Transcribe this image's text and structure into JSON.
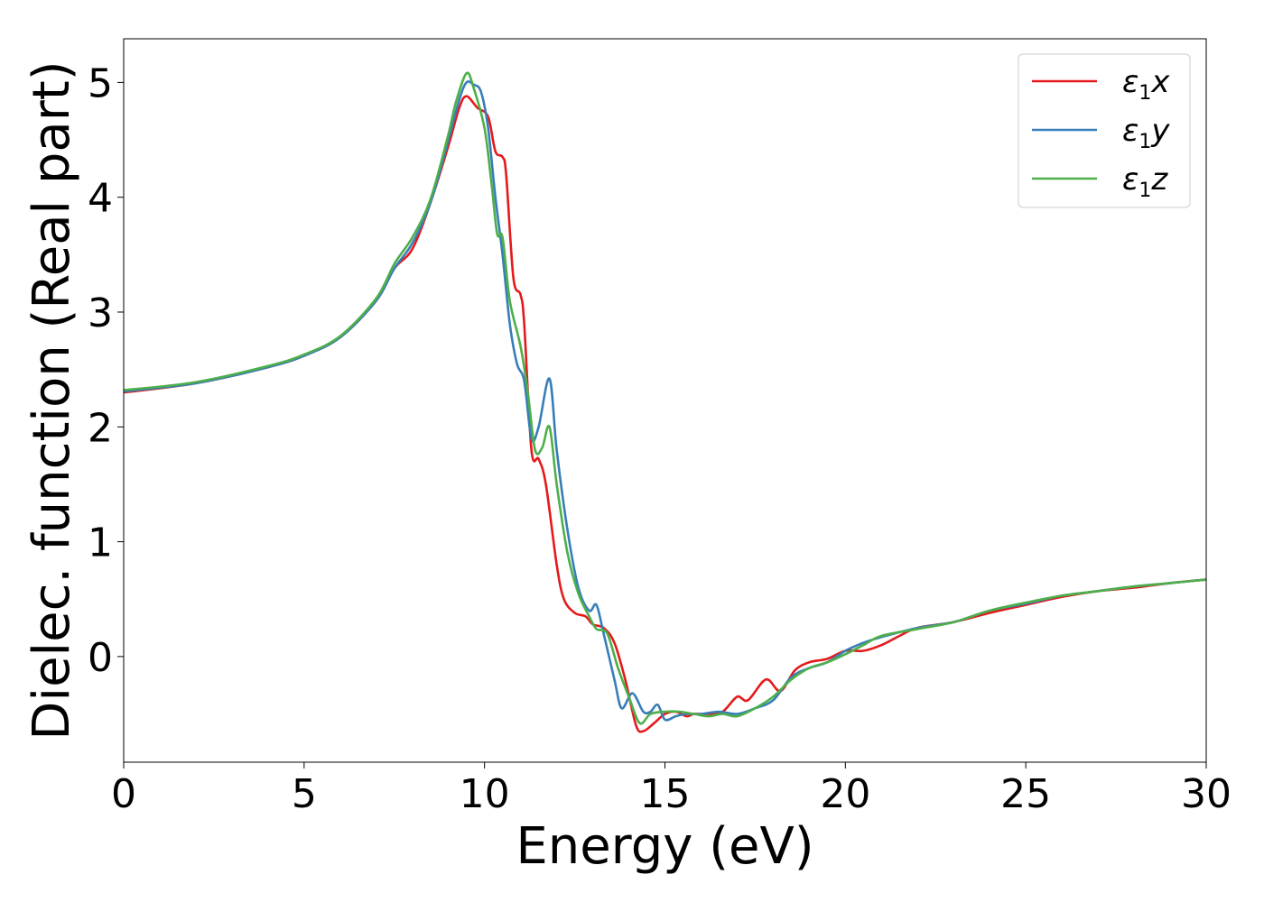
{
  "chart_data": {
    "type": "line",
    "title": "",
    "xlabel": "Energy (eV)",
    "ylabel": "Dielec. function (Real part)",
    "xlim": [
      0,
      30
    ],
    "ylim": [
      -0.92,
      5.38
    ],
    "xticks": [
      0,
      5,
      10,
      15,
      20,
      25,
      30
    ],
    "yticks": [
      0,
      1,
      2,
      3,
      4,
      5
    ],
    "grid": false,
    "legend_position": "top-right",
    "series": [
      {
        "name": "ε₁x",
        "label_base": "ε",
        "label_sub": "1",
        "label_var": "x",
        "color": "#e41a1c",
        "x": [
          0,
          2,
          4,
          5,
          6,
          7,
          7.5,
          8,
          8.5,
          9,
          9.3,
          9.5,
          9.8,
          10.1,
          10.3,
          10.5,
          10.6,
          10.8,
          11,
          11.1,
          11.3,
          11.5,
          11.7,
          12,
          12.2,
          12.5,
          12.8,
          13,
          13.3,
          13.6,
          13.9,
          14.2,
          14.4,
          14.7,
          15,
          15.3,
          15.6,
          15.8,
          16.2,
          16.6,
          17,
          17.3,
          17.8,
          18.2,
          18.6,
          19,
          19.5,
          20,
          20.5,
          21,
          21.5,
          22,
          23,
          24,
          25,
          26,
          27,
          28,
          29,
          30
        ],
        "y": [
          2.3,
          2.38,
          2.52,
          2.62,
          2.78,
          3.1,
          3.38,
          3.55,
          3.95,
          4.45,
          4.78,
          4.88,
          4.78,
          4.7,
          4.4,
          4.35,
          4.2,
          3.3,
          3.15,
          2.9,
          1.8,
          1.72,
          1.5,
          0.8,
          0.5,
          0.38,
          0.35,
          0.28,
          0.25,
          0.12,
          -0.2,
          -0.6,
          -0.65,
          -0.58,
          -0.5,
          -0.48,
          -0.52,
          -0.5,
          -0.5,
          -0.48,
          -0.35,
          -0.38,
          -0.2,
          -0.3,
          -0.12,
          -0.05,
          -0.02,
          0.05,
          0.05,
          0.1,
          0.18,
          0.25,
          0.3,
          0.38,
          0.45,
          0.52,
          0.57,
          0.6,
          0.64,
          0.67
        ]
      },
      {
        "name": "ε₁y",
        "label_base": "ε",
        "label_sub": "1",
        "label_var": "y",
        "color": "#377eb8",
        "x": [
          0,
          2,
          4,
          5,
          6,
          7,
          7.5,
          8,
          8.5,
          9,
          9.3,
          9.5,
          9.7,
          9.9,
          10.1,
          10.3,
          10.5,
          10.7,
          10.9,
          11.1,
          11.3,
          11.5,
          11.8,
          12,
          12.3,
          12.6,
          12.9,
          13.1,
          13.3,
          13.6,
          13.8,
          14.1,
          14.4,
          14.6,
          14.8,
          15,
          15.3,
          15.6,
          16,
          16.5,
          17,
          17.5,
          18,
          18.5,
          19,
          19.5,
          20,
          20.5,
          21,
          22,
          23,
          24,
          25,
          26,
          27,
          28,
          29,
          30
        ],
        "y": [
          2.31,
          2.38,
          2.52,
          2.62,
          2.78,
          3.1,
          3.38,
          3.6,
          3.95,
          4.5,
          4.85,
          5.0,
          4.98,
          4.92,
          4.6,
          4.0,
          3.5,
          2.9,
          2.55,
          2.4,
          1.9,
          2.0,
          2.42,
          1.8,
          1.1,
          0.6,
          0.4,
          0.45,
          0.2,
          -0.2,
          -0.45,
          -0.32,
          -0.48,
          -0.48,
          -0.42,
          -0.55,
          -0.52,
          -0.5,
          -0.5,
          -0.48,
          -0.5,
          -0.45,
          -0.38,
          -0.18,
          -0.1,
          -0.05,
          0.05,
          0.12,
          0.17,
          0.25,
          0.3,
          0.4,
          0.46,
          0.53,
          0.57,
          0.61,
          0.64,
          0.67
        ]
      },
      {
        "name": "ε₁z",
        "label_base": "ε",
        "label_sub": "1",
        "label_var": "z",
        "color": "#4daf4a",
        "x": [
          0,
          2,
          4,
          5,
          6,
          7,
          7.5,
          8,
          8.5,
          9,
          9.2,
          9.5,
          9.7,
          10,
          10.2,
          10.35,
          10.5,
          10.7,
          11,
          11.2,
          11.4,
          11.6,
          11.8,
          12,
          12.3,
          12.6,
          12.9,
          13.1,
          13.4,
          13.7,
          14,
          14.3,
          14.6,
          15,
          15.4,
          15.8,
          16.2,
          16.6,
          17,
          17.5,
          18,
          18.5,
          19,
          19.5,
          20,
          20.5,
          21,
          22,
          23,
          24,
          25,
          26,
          27,
          28,
          29,
          30
        ],
        "y": [
          2.32,
          2.39,
          2.53,
          2.63,
          2.79,
          3.12,
          3.42,
          3.65,
          3.98,
          4.55,
          4.82,
          5.08,
          4.95,
          4.6,
          4.1,
          3.68,
          3.65,
          3.1,
          2.7,
          2.3,
          1.8,
          1.82,
          2.0,
          1.5,
          0.9,
          0.55,
          0.35,
          0.24,
          0.2,
          -0.1,
          -0.35,
          -0.58,
          -0.5,
          -0.48,
          -0.48,
          -0.5,
          -0.52,
          -0.5,
          -0.52,
          -0.45,
          -0.35,
          -0.2,
          -0.1,
          -0.05,
          0.02,
          0.1,
          0.18,
          0.24,
          0.3,
          0.4,
          0.47,
          0.53,
          0.57,
          0.61,
          0.64,
          0.67
        ]
      }
    ]
  }
}
